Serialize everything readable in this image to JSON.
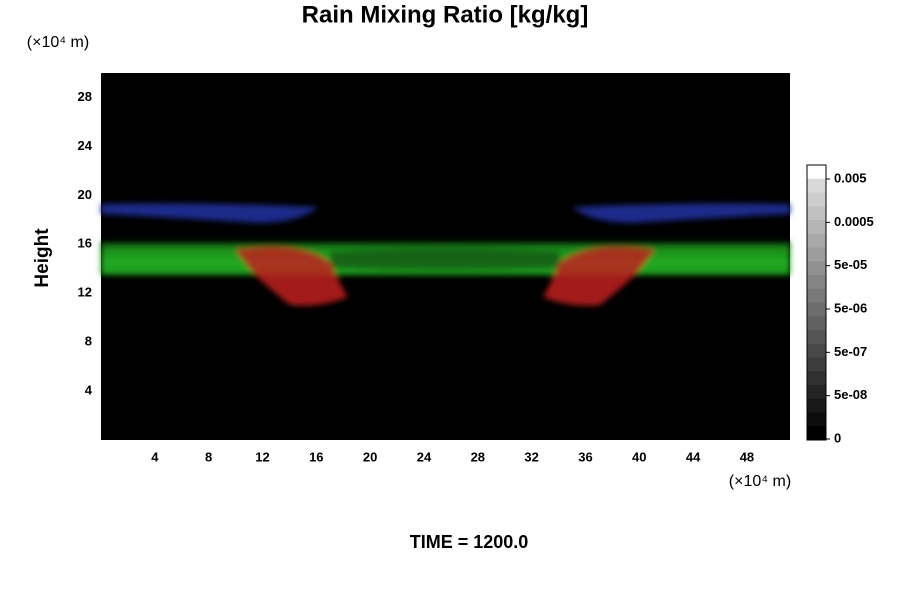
{
  "chart_data": {
    "type": "contour",
    "title": "Rain Mixing Ratio [kg/kg]",
    "ylabel": "Height",
    "y_unit": "(×10⁴ m)",
    "x_unit": "(×10⁴ m)",
    "xlim": [
      0,
      51.2
    ],
    "xticks": [
      4,
      8,
      12,
      16,
      20,
      24,
      28,
      32,
      36,
      40,
      44,
      48
    ],
    "ylim": [
      0,
      30
    ],
    "yticks": [
      4,
      8,
      12,
      16,
      20,
      24,
      28
    ],
    "grid": false,
    "colorbar_ticks": [
      {
        "value": 0,
        "label": "0"
      },
      {
        "value": 5e-08,
        "label": "5e-08"
      },
      {
        "value": 5e-07,
        "label": "5e-07"
      },
      {
        "value": 5e-06,
        "label": "5e-06"
      },
      {
        "value": 5e-05,
        "label": "5e-05"
      },
      {
        "value": 0.0005,
        "label": "0.0005"
      },
      {
        "value": 0.005,
        "label": "0.005"
      }
    ],
    "footer": "TIME = 1200.0"
  }
}
